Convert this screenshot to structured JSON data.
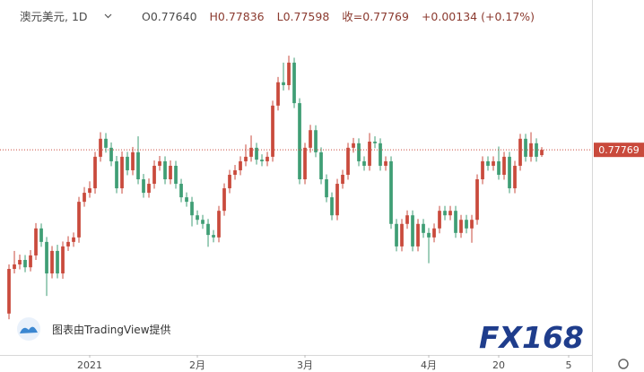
{
  "chart_data": {
    "type": "candlestick",
    "symbol": "澳元美元, 1D",
    "legend_items": [
      "O0.77640",
      "H0.77836",
      "L0.77598",
      "收=0.77769",
      "+0.00134 (+0.17%)"
    ],
    "watermark": "图表由TradingView提供",
    "logo": "FX168",
    "up_color": "#c94a3c",
    "down_color": "#3f9e75",
    "grid": false,
    "ylim": [
      0.7278,
      0.8143
    ],
    "xlim": [
      -1.67,
      108.33
    ],
    "xticks": [
      {
        "value": 15,
        "label": "2021"
      },
      {
        "value": 35,
        "label": "2月"
      },
      {
        "value": 55,
        "label": "3月"
      },
      {
        "value": 78,
        "label": "4月"
      },
      {
        "value": 91,
        "label": "20"
      },
      {
        "value": 104,
        "label": "5"
      }
    ],
    "x": [
      0,
      1,
      2,
      3,
      4,
      5,
      6,
      7,
      8,
      9,
      10,
      11,
      12,
      13,
      14,
      15,
      16,
      17,
      18,
      19,
      20,
      21,
      22,
      23,
      24,
      25,
      26,
      27,
      28,
      29,
      30,
      31,
      32,
      33,
      34,
      35,
      36,
      37,
      38,
      39,
      40,
      41,
      42,
      43,
      44,
      45,
      46,
      47,
      48,
      49,
      50,
      51,
      52,
      53,
      54,
      55,
      56,
      57,
      58,
      59,
      60,
      61,
      62,
      63,
      64,
      65,
      66,
      67,
      68,
      69,
      70,
      71,
      72,
      73,
      74,
      75,
      76,
      77,
      78,
      79,
      80,
      81,
      82,
      83,
      84,
      85,
      86,
      87,
      88,
      89,
      90,
      91,
      92,
      93,
      94,
      95,
      96,
      97,
      98,
      99
    ],
    "open": [
      0.7377,
      0.7486,
      0.7497,
      0.7508,
      0.749,
      0.7519,
      0.7585,
      0.7552,
      0.7475,
      0.753,
      0.7475,
      0.7541,
      0.7552,
      0.7563,
      0.765,
      0.7672,
      0.7683,
      0.776,
      0.7804,
      0.7782,
      0.7749,
      0.7683,
      0.776,
      0.7727,
      0.7771,
      0.7705,
      0.7672,
      0.7694,
      0.7738,
      0.7749,
      0.7705,
      0.7738,
      0.7694,
      0.7661,
      0.765,
      0.7617,
      0.7606,
      0.7596,
      0.7569,
      0.7563,
      0.7628,
      0.7683,
      0.7716,
      0.7727,
      0.7749,
      0.776,
      0.7782,
      0.7753,
      0.7749,
      0.776,
      0.7885,
      0.7942,
      0.7935,
      0.799,
      0.7891,
      0.7705,
      0.7782,
      0.7825,
      0.7771,
      0.7705,
      0.7661,
      0.7617,
      0.7694,
      0.7716,
      0.7782,
      0.7793,
      0.7749,
      0.7738,
      0.7797,
      0.7793,
      0.7738,
      0.7749,
      0.7596,
      0.7541,
      0.7596,
      0.7617,
      0.7541,
      0.7596,
      0.7574,
      0.7563,
      0.7585,
      0.7628,
      0.7617,
      0.7628,
      0.7574,
      0.7606,
      0.7585,
      0.7606,
      0.7705,
      0.7749,
      0.7738,
      0.7749,
      0.7716,
      0.776,
      0.7683,
      0.7738,
      0.7804,
      0.776,
      0.7793,
      0.7764
    ],
    "high": [
      0.7497,
      0.753,
      0.7521,
      0.752,
      0.7532,
      0.7598,
      0.7597,
      0.7564,
      0.7542,
      0.7545,
      0.7553,
      0.7566,
      0.7575,
      0.7662,
      0.7686,
      0.77,
      0.7772,
      0.782,
      0.7818,
      0.7795,
      0.7762,
      0.7773,
      0.7772,
      0.7784,
      0.781,
      0.7718,
      0.7707,
      0.7751,
      0.7762,
      0.7761,
      0.7751,
      0.775,
      0.7706,
      0.7673,
      0.7662,
      0.7629,
      0.7618,
      0.7608,
      0.7581,
      0.764,
      0.7695,
      0.7728,
      0.774,
      0.7761,
      0.779,
      0.7812,
      0.7794,
      0.7766,
      0.7772,
      0.7897,
      0.7955,
      0.799,
      0.8007,
      0.8002,
      0.7903,
      0.7794,
      0.7838,
      0.7837,
      0.7783,
      0.7717,
      0.7673,
      0.7706,
      0.7728,
      0.7794,
      0.7806,
      0.7805,
      0.7761,
      0.7818,
      0.781,
      0.7805,
      0.7761,
      0.7761,
      0.7608,
      0.7608,
      0.7629,
      0.7629,
      0.7608,
      0.7608,
      0.7586,
      0.7597,
      0.764,
      0.764,
      0.764,
      0.764,
      0.7618,
      0.7618,
      0.7618,
      0.7717,
      0.7761,
      0.7761,
      0.7761,
      0.7785,
      0.7772,
      0.7772,
      0.775,
      0.7816,
      0.7816,
      0.782,
      0.7805,
      0.77836
    ],
    "low": [
      0.7363,
      0.7475,
      0.7485,
      0.7478,
      0.748,
      0.7508,
      0.754,
      0.742,
      0.7463,
      0.7463,
      0.7462,
      0.753,
      0.754,
      0.755,
      0.7638,
      0.766,
      0.767,
      0.7748,
      0.777,
      0.7737,
      0.7671,
      0.767,
      0.7715,
      0.7715,
      0.7693,
      0.766,
      0.766,
      0.7682,
      0.7726,
      0.7693,
      0.7693,
      0.7682,
      0.7649,
      0.7638,
      0.759,
      0.7594,
      0.7584,
      0.754,
      0.7551,
      0.7551,
      0.7616,
      0.7671,
      0.7704,
      0.7715,
      0.7737,
      0.7748,
      0.7741,
      0.7737,
      0.7737,
      0.7748,
      0.7873,
      0.7922,
      0.7923,
      0.7879,
      0.7693,
      0.7693,
      0.777,
      0.7759,
      0.7693,
      0.7649,
      0.7605,
      0.7605,
      0.7682,
      0.7704,
      0.777,
      0.7737,
      0.7726,
      0.7726,
      0.7781,
      0.7726,
      0.7726,
      0.7584,
      0.7529,
      0.7529,
      0.7584,
      0.7529,
      0.7529,
      0.7562,
      0.75,
      0.7551,
      0.7573,
      0.7605,
      0.7605,
      0.7562,
      0.7562,
      0.7573,
      0.755,
      0.7594,
      0.7693,
      0.7726,
      0.7726,
      0.7704,
      0.7704,
      0.7671,
      0.7671,
      0.7726,
      0.7748,
      0.7748,
      0.7748,
      0.77598
    ],
    "close": [
      0.7486,
      0.7497,
      0.7508,
      0.749,
      0.7519,
      0.7585,
      0.7552,
      0.7475,
      0.753,
      0.7475,
      0.7541,
      0.7552,
      0.7563,
      0.765,
      0.7672,
      0.7683,
      0.776,
      0.7804,
      0.7782,
      0.7749,
      0.7683,
      0.776,
      0.7727,
      0.7771,
      0.7705,
      0.7672,
      0.7694,
      0.7738,
      0.7749,
      0.7705,
      0.7738,
      0.7694,
      0.7661,
      0.765,
      0.7617,
      0.7606,
      0.7596,
      0.7569,
      0.7563,
      0.7628,
      0.7683,
      0.7716,
      0.7727,
      0.7749,
      0.776,
      0.7782,
      0.7753,
      0.7749,
      0.776,
      0.7885,
      0.7942,
      0.7935,
      0.799,
      0.7891,
      0.7705,
      0.7782,
      0.7825,
      0.7771,
      0.7705,
      0.7661,
      0.7617,
      0.7694,
      0.7716,
      0.7782,
      0.7793,
      0.7749,
      0.7738,
      0.7797,
      0.7793,
      0.7738,
      0.7749,
      0.7596,
      0.7541,
      0.7596,
      0.7617,
      0.7541,
      0.7596,
      0.7574,
      0.7563,
      0.7585,
      0.7628,
      0.7617,
      0.7628,
      0.7574,
      0.7606,
      0.7585,
      0.7606,
      0.7705,
      0.7749,
      0.7738,
      0.7749,
      0.7716,
      0.776,
      0.7683,
      0.7738,
      0.7804,
      0.776,
      0.7793,
      0.776,
      0.77769
    ]
  }
}
